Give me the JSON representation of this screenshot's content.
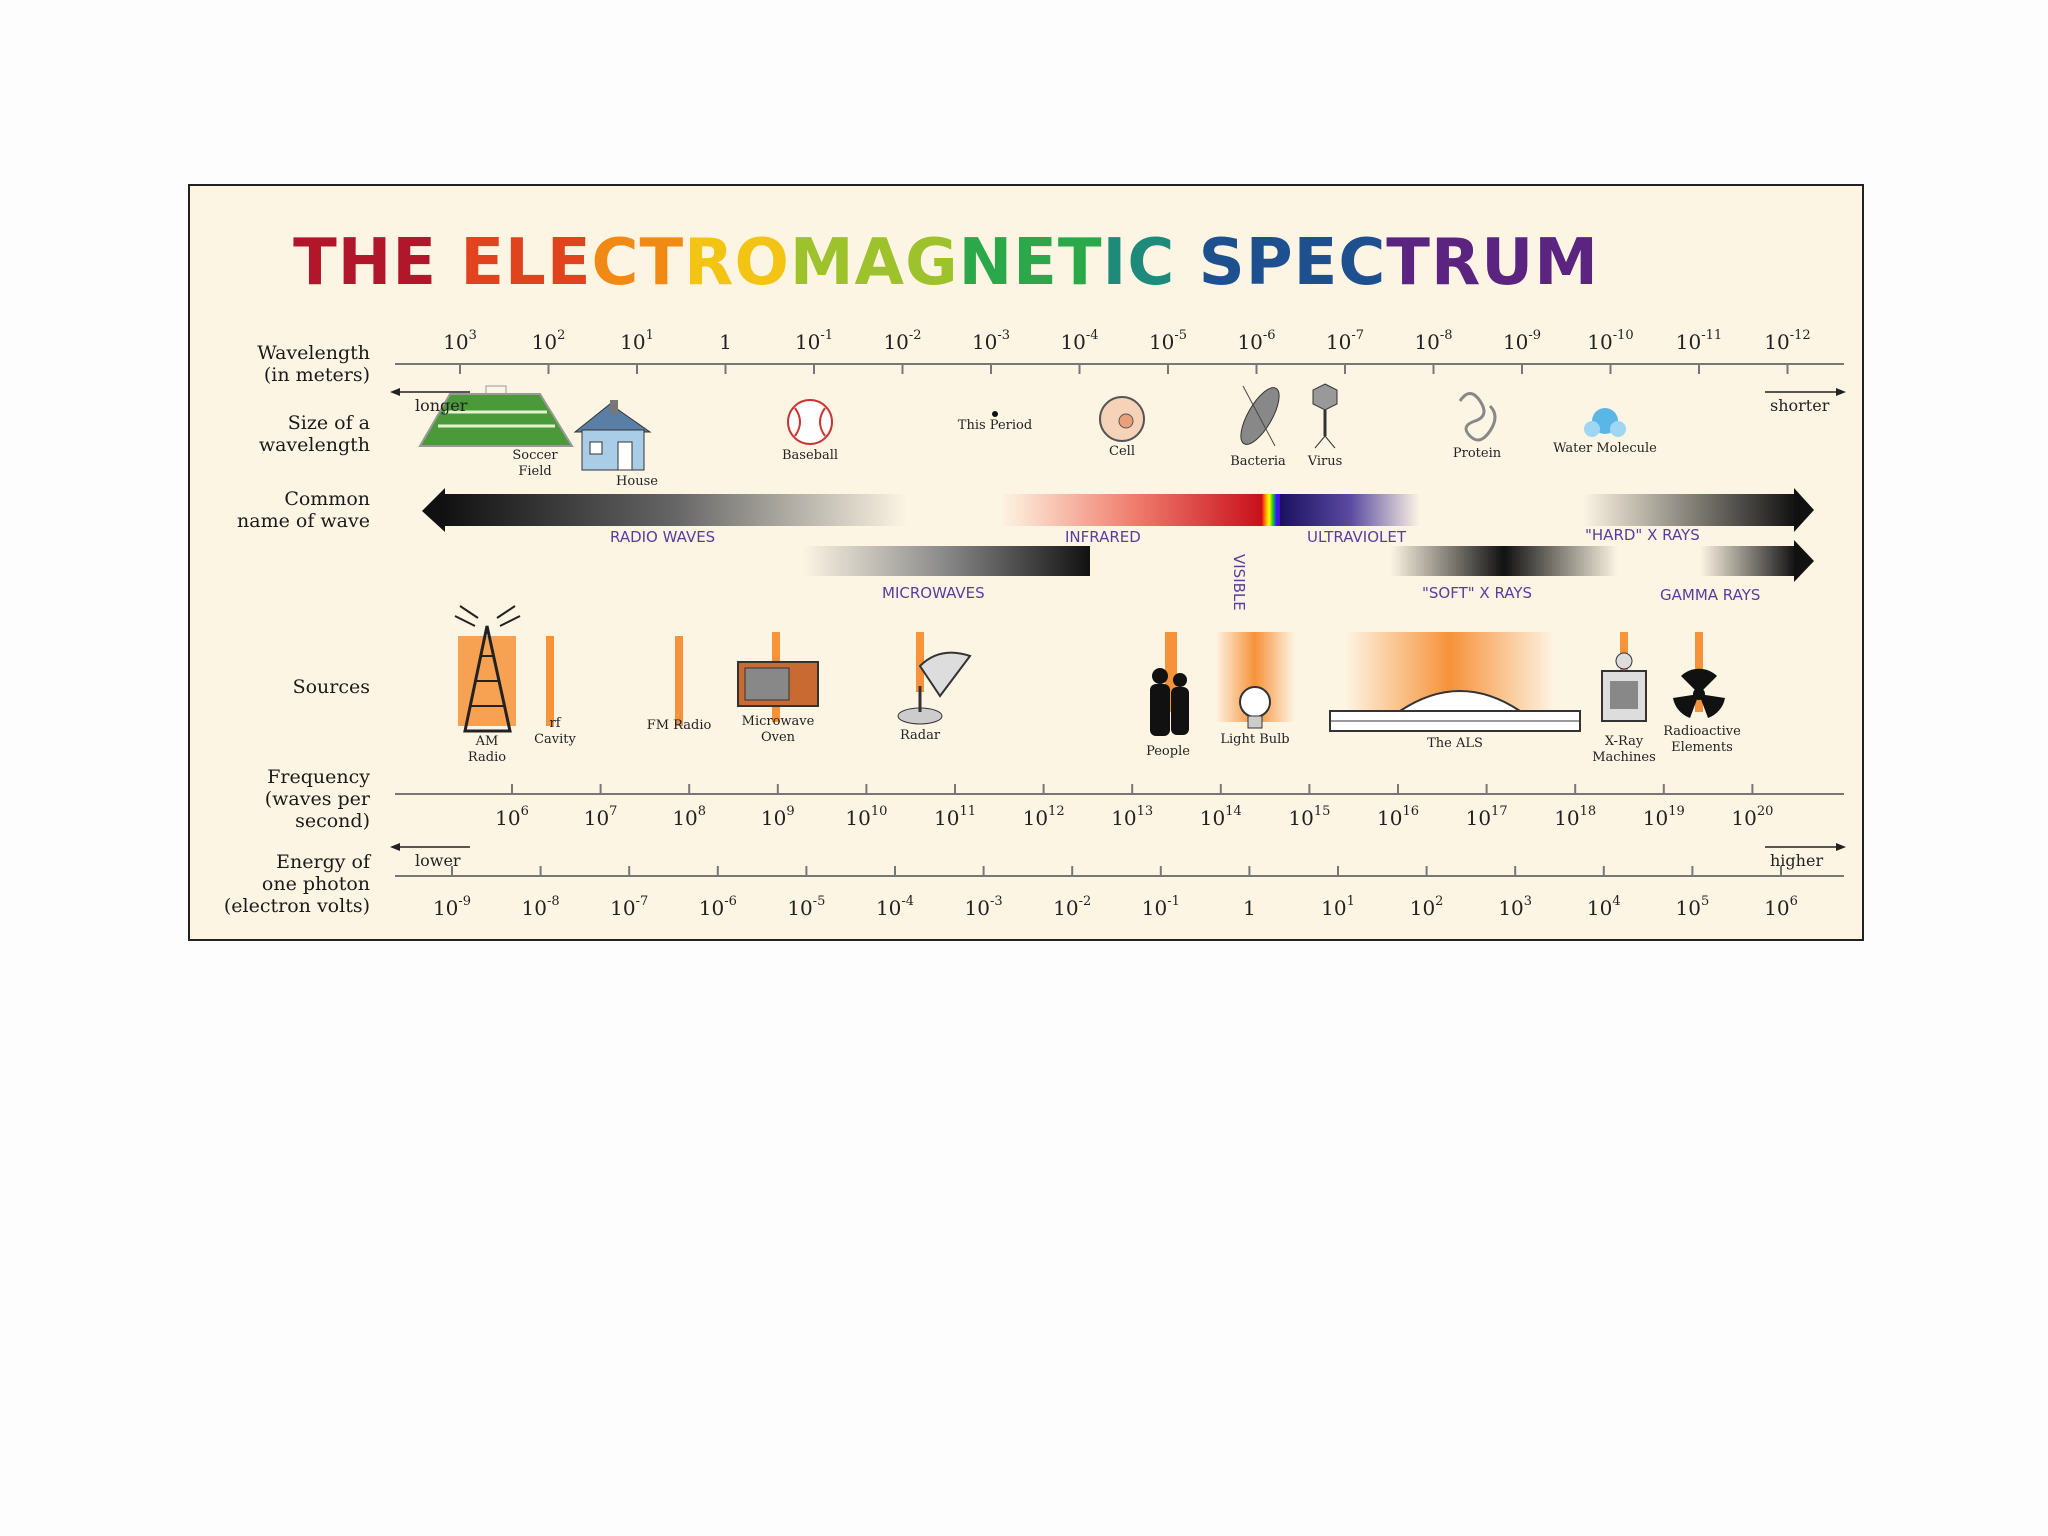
{
  "title": {
    "letters": [
      {
        "text": "THE ",
        "color": "#b2162b"
      },
      {
        "text": "ELE",
        "color": "#e1431f"
      },
      {
        "text": "CT",
        "color": "#f08a14"
      },
      {
        "text": "RO",
        "color": "#f4c414"
      },
      {
        "text": "MAG",
        "color": "#9ec22c"
      },
      {
        "text": "NET",
        "color": "#2aa84a"
      },
      {
        "text": "IC ",
        "color": "#1e8a7a"
      },
      {
        "text": "SPEC",
        "color": "#1e4f8f"
      },
      {
        "text": "TRUM",
        "color": "#5a2480"
      }
    ]
  },
  "row_labels": {
    "wavelength": [
      "Wavelength",
      "(in meters)"
    ],
    "size": [
      "Size of a",
      "wavelength"
    ],
    "common": [
      "Common",
      "name of wave"
    ],
    "sources": [
      "Sources"
    ],
    "frequency": [
      "Frequency",
      "(waves per",
      "second)"
    ],
    "energy": [
      "Energy of",
      "one photon",
      "(electron volts)"
    ]
  },
  "wavelength_ticks": [
    {
      "base": "10",
      "exp": "3"
    },
    {
      "base": "10",
      "exp": "2"
    },
    {
      "base": "10",
      "exp": "1"
    },
    {
      "base": "1",
      "exp": ""
    },
    {
      "base": "10",
      "exp": "-1"
    },
    {
      "base": "10",
      "exp": "-2"
    },
    {
      "base": "10",
      "exp": "-3"
    },
    {
      "base": "10",
      "exp": "-4"
    },
    {
      "base": "10",
      "exp": "-5"
    },
    {
      "base": "10",
      "exp": "-6"
    },
    {
      "base": "10",
      "exp": "-7"
    },
    {
      "base": "10",
      "exp": "-8"
    },
    {
      "base": "10",
      "exp": "-9"
    },
    {
      "base": "10",
      "exp": "-10"
    },
    {
      "base": "10",
      "exp": "-11"
    },
    {
      "base": "10",
      "exp": "-12"
    }
  ],
  "frequency_ticks": [
    {
      "base": "10",
      "exp": "6"
    },
    {
      "base": "10",
      "exp": "7"
    },
    {
      "base": "10",
      "exp": "8"
    },
    {
      "base": "10",
      "exp": "9"
    },
    {
      "base": "10",
      "exp": "10"
    },
    {
      "base": "10",
      "exp": "11"
    },
    {
      "base": "10",
      "exp": "12"
    },
    {
      "base": "10",
      "exp": "13"
    },
    {
      "base": "10",
      "exp": "14"
    },
    {
      "base": "10",
      "exp": "15"
    },
    {
      "base": "10",
      "exp": "16"
    },
    {
      "base": "10",
      "exp": "17"
    },
    {
      "base": "10",
      "exp": "18"
    },
    {
      "base": "10",
      "exp": "19"
    },
    {
      "base": "10",
      "exp": "20"
    }
  ],
  "energy_ticks": [
    {
      "base": "10",
      "exp": "-9"
    },
    {
      "base": "10",
      "exp": "-8"
    },
    {
      "base": "10",
      "exp": "-7"
    },
    {
      "base": "10",
      "exp": "-6"
    },
    {
      "base": "10",
      "exp": "-5"
    },
    {
      "base": "10",
      "exp": "-4"
    },
    {
      "base": "10",
      "exp": "-3"
    },
    {
      "base": "10",
      "exp": "-2"
    },
    {
      "base": "10",
      "exp": "-1"
    },
    {
      "base": "1",
      "exp": ""
    },
    {
      "base": "10",
      "exp": "1"
    },
    {
      "base": "10",
      "exp": "2"
    },
    {
      "base": "10",
      "exp": "3"
    },
    {
      "base": "10",
      "exp": "4"
    },
    {
      "base": "10",
      "exp": "5"
    },
    {
      "base": "10",
      "exp": "6"
    }
  ],
  "direction_labels": {
    "longer": "longer",
    "shorter": "shorter",
    "lower": "lower",
    "higher": "higher"
  },
  "size_objects": [
    {
      "id": "soccer",
      "label": [
        "Soccer",
        "Field"
      ],
      "icon": "soccer-field-icon"
    },
    {
      "id": "house",
      "label": [
        "House"
      ],
      "icon": "house-icon"
    },
    {
      "id": "baseball",
      "label": [
        "Baseball"
      ],
      "icon": "baseball-icon"
    },
    {
      "id": "period",
      "label": [
        "This Period"
      ],
      "icon": "period-dot-icon"
    },
    {
      "id": "cell",
      "label": [
        "Cell"
      ],
      "icon": "cell-icon"
    },
    {
      "id": "bacteria",
      "label": [
        "Bacteria"
      ],
      "icon": "bacteria-icon"
    },
    {
      "id": "virus",
      "label": [
        "Virus"
      ],
      "icon": "virus-icon"
    },
    {
      "id": "protein",
      "label": [
        "Protein"
      ],
      "icon": "protein-icon"
    },
    {
      "id": "water",
      "label": [
        "Water Molecule"
      ],
      "icon": "water-molecule-icon"
    }
  ],
  "wave_names": {
    "radio": "RADIO WAVES",
    "microwaves": "MICROWAVES",
    "infrared": "INFRARED",
    "visible": "VISIBLE",
    "ultraviolet": "ULTRAVIOLET",
    "soft_xrays": "\"SOFT\" X RAYS",
    "hard_xrays": "\"HARD\" X RAYS",
    "gamma": "GAMMA RAYS"
  },
  "sources": [
    {
      "id": "am",
      "label": [
        "AM",
        "Radio"
      ],
      "icon": "radio-tower-icon"
    },
    {
      "id": "rf",
      "label": [
        "rf",
        "Cavity"
      ],
      "icon": "rf-cavity-icon"
    },
    {
      "id": "fm",
      "label": [
        "FM Radio"
      ],
      "icon": "fm-radio-icon"
    },
    {
      "id": "mw",
      "label": [
        "Microwave",
        "Oven"
      ],
      "icon": "microwave-oven-icon"
    },
    {
      "id": "radar",
      "label": [
        "Radar"
      ],
      "icon": "radar-dish-icon"
    },
    {
      "id": "people",
      "label": [
        "People"
      ],
      "icon": "people-icon"
    },
    {
      "id": "bulb",
      "label": [
        "Light Bulb"
      ],
      "icon": "light-bulb-icon"
    },
    {
      "id": "als",
      "label": [
        "The ALS"
      ],
      "icon": "als-building-icon"
    },
    {
      "id": "xray",
      "label": [
        "X-Ray",
        "Machines"
      ],
      "icon": "xray-machine-icon"
    },
    {
      "id": "radio_el",
      "label": [
        "Radioactive",
        "Elements"
      ],
      "icon": "radiation-icon"
    }
  ],
  "colors": {
    "panel_bg": "#fdf5e4",
    "wave_label": "#5a3c9e",
    "source_band": "#f28a2e"
  }
}
